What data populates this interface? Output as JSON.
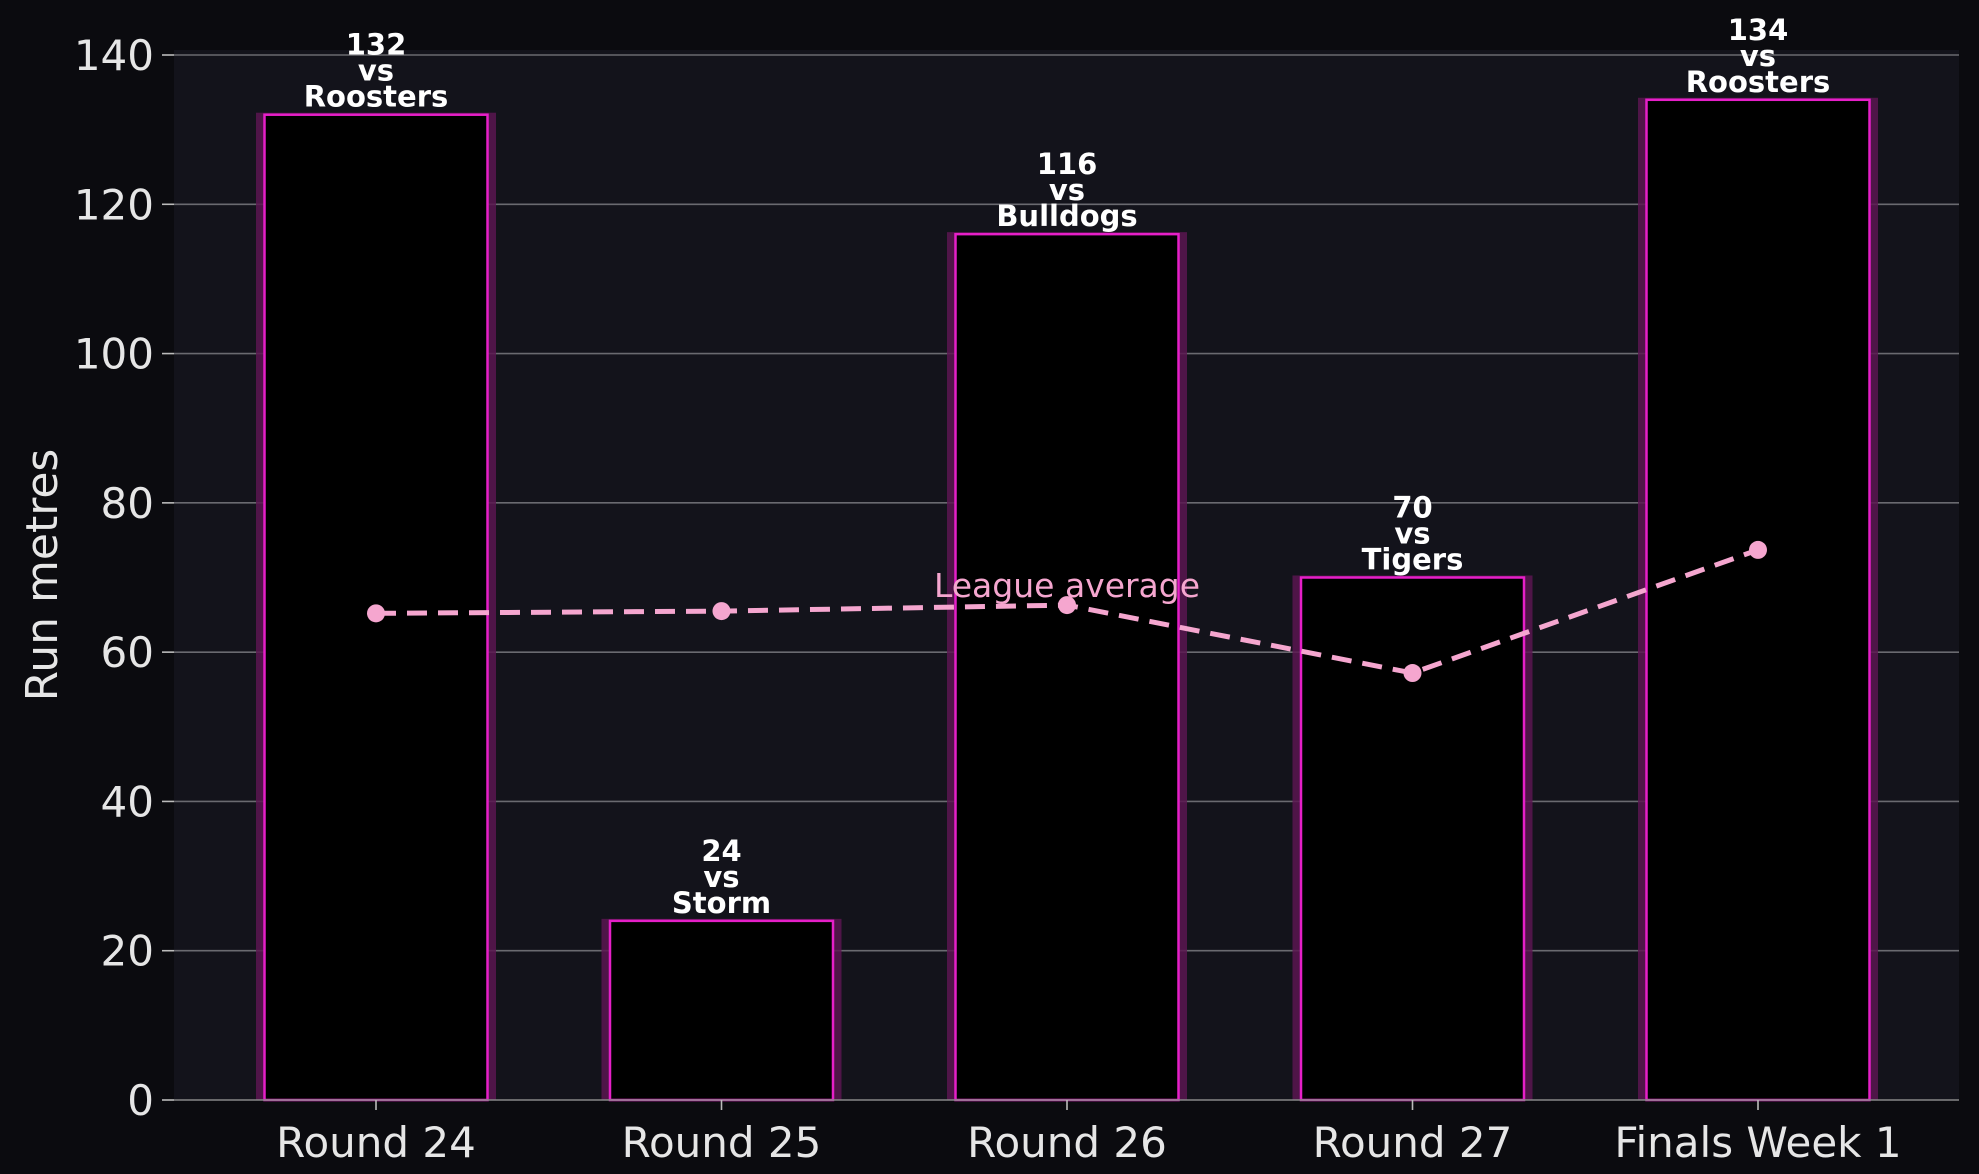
{
  "chart_data": {
    "type": "bar",
    "categories": [
      "Round 24",
      "Round 25",
      "Round 26",
      "Round 27",
      "Finals Week 1"
    ],
    "series": [
      {
        "values": [
          132,
          24,
          116,
          70,
          134
        ]
      }
    ],
    "opponents": [
      "Roosters",
      "Storm",
      "Bulldogs",
      "Tigers",
      "Roosters"
    ],
    "bar_label_connector": "vs",
    "overlay_line": {
      "label": "League average",
      "values": [
        65.2,
        65.5,
        66.3,
        57.2,
        73.7
      ]
    },
    "title": "",
    "xlabel": "",
    "ylabel": "Run metres",
    "ylim": [
      0,
      140
    ],
    "yticks": [
      0,
      20,
      40,
      60,
      80,
      100,
      120,
      140
    ],
    "grid": "horizontal",
    "colors": {
      "figure_background": "#0b0b0f",
      "plot_background": "#13131b",
      "bar_fill": "#000000",
      "bar_edge": "#e61fc8",
      "bar_glow": "#5a1650",
      "gridline": "#6a6a70",
      "average_line": "#f5a6cf"
    }
  }
}
